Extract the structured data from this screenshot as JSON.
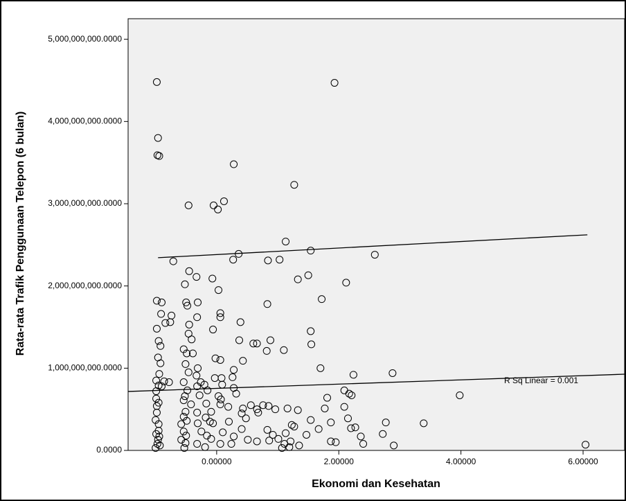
{
  "chart_data": {
    "type": "scatter",
    "x_label": "Ekonomi dan Kesehatan",
    "y_label": "Rata-rata Trafik Penggunaan Telepon (6 bulan)",
    "annotation": "R Sq Linear = 0.001",
    "xlim": [
      -1.45,
      6.68
    ],
    "ylim": [
      0,
      5250000000.0
    ],
    "xticks": [
      {
        "value": 0,
        "label": "0.00000"
      },
      {
        "value": 2,
        "label": "2.00000"
      },
      {
        "value": 4,
        "label": "4.00000"
      },
      {
        "value": 6,
        "label": "6.00000"
      }
    ],
    "yticks": [
      {
        "value": 0,
        "label": "0.0000"
      },
      {
        "value": 1000000000.0,
        "label": "1,000,000,000.0000"
      },
      {
        "value": 2000000000.0,
        "label": "2,000,000,000.0000"
      },
      {
        "value": 3000000000.0,
        "label": "3,000,000,000.0000"
      },
      {
        "value": 4000000000.0,
        "label": "4,000,000,000.0000"
      },
      {
        "value": 5000000000.0,
        "label": "5,000,000,000.0000"
      }
    ],
    "marker_color": "#000000",
    "background": "#f0f0f0",
    "x": [
      -0.98,
      1.93,
      -0.96,
      -0.97,
      -0.94,
      0.28,
      1.27,
      -0.46,
      -0.05,
      0.02,
      0.12,
      1.13,
      0.36,
      -0.71,
      0.27,
      0.84,
      1.03,
      1.54,
      2.59,
      -0.45,
      -0.33,
      -0.07,
      1.33,
      1.5,
      2.12,
      -0.52,
      0.03,
      -0.98,
      -0.9,
      -0.5,
      -0.31,
      -0.48,
      0.83,
      1.72,
      -0.91,
      -0.74,
      0.06,
      0.06,
      -0.32,
      -0.84,
      -0.76,
      -0.45,
      0.39,
      -0.98,
      -0.06,
      1.54,
      -0.46,
      -0.41,
      -0.95,
      0.37,
      0.88,
      0.6,
      0.66,
      -0.92,
      1.55,
      -0.54,
      0.82,
      1.1,
      -0.49,
      -0.39,
      -0.96,
      -0.02,
      0.06,
      0.43,
      -0.92,
      -0.51,
      -0.31,
      1.7,
      0.28,
      2.88,
      2.24,
      -0.94,
      -0.46,
      -0.33,
      -0.03,
      0.08,
      0.26,
      -0.99,
      -0.86,
      -0.78,
      -0.54,
      -0.26,
      -0.95,
      -0.9,
      -0.32,
      -0.2,
      0.09,
      0.28,
      -0.99,
      -0.48,
      -0.15,
      0.32,
      2.09,
      2.17,
      2.21,
      3.98,
      -0.99,
      -0.52,
      -0.28,
      0.03,
      0.07,
      1.81,
      -0.95,
      -0.98,
      -0.54,
      -0.42,
      -0.17,
      0.06,
      0.19,
      0.56,
      0.76,
      0.85,
      0.43,
      0.66,
      0.96,
      1.16,
      1.77,
      2.09,
      -0.98,
      -0.51,
      -0.32,
      -0.09,
      0.41,
      0.68,
      1.33,
      -0.54,
      -0.18,
      -1.0,
      -0.49,
      -0.11,
      0.2,
      0.48,
      1.54,
      2.15,
      -0.95,
      -0.58,
      -0.31,
      -0.06,
      1.23,
      1.87,
      2.2,
      2.27,
      2.77,
      3.39,
      0.41,
      0.83,
      1.27,
      1.67,
      -0.95,
      -0.99,
      -0.54,
      -0.25,
      0.1,
      1.13,
      2.72,
      -0.94,
      -0.5,
      -0.16,
      0.28,
      0.92,
      1.47,
      2.36,
      -0.96,
      -0.58,
      -0.09,
      0.51,
      0.66,
      1.01,
      1.21,
      1.87,
      1.95,
      2.4,
      -0.97,
      -0.93,
      -0.51,
      -0.32,
      0.06,
      0.24,
      0.86,
      1.11,
      1.35,
      2.9,
      6.04,
      -1.0,
      -0.53,
      -0.19,
      1.07,
      1.19
    ],
    "y": [
      4480000000.0,
      4470000000.0,
      3800000000.0,
      3590000000.0,
      3580000000.0,
      3480000000.0,
      3230000000.0,
      2980000000.0,
      2980000000.0,
      2930000000.0,
      3030000000.0,
      2540000000.0,
      2390000000.0,
      2300000000.0,
      2320000000.0,
      2310000000.0,
      2320000000.0,
      2430000000.0,
      2380000000.0,
      2180000000.0,
      2110000000.0,
      2090000000.0,
      2080000000.0,
      2130000000.0,
      2040000000.0,
      2020000000.0,
      1950000000.0,
      1820000000.0,
      1800000000.0,
      1800000000.0,
      1800000000.0,
      1760000000.0,
      1780000000.0,
      1840000000.0,
      1660000000.0,
      1640000000.0,
      1670000000.0,
      1620000000.0,
      1620000000.0,
      1550000000.0,
      1560000000.0,
      1530000000.0,
      1560000000.0,
      1480000000.0,
      1470000000.0,
      1450000000.0,
      1420000000.0,
      1350000000.0,
      1330000000.0,
      1340000000.0,
      1340000000.0,
      1300000000.0,
      1300000000.0,
      1270000000.0,
      1290000000.0,
      1230000000.0,
      1210000000.0,
      1220000000.0,
      1180000000.0,
      1180000000.0,
      1130000000.0,
      1120000000.0,
      1100000000.0,
      1090000000.0,
      1060000000.0,
      1050000000.0,
      1000000000.0,
      1000000000.0,
      980000000.0,
      940000000.0,
      920000000.0,
      930000000.0,
      950000000.0,
      910000000.0,
      880000000.0,
      880000000.0,
      890000000.0,
      850000000.0,
      840000000.0,
      830000000.0,
      830000000.0,
      830000000.0,
      790000000.0,
      780000000.0,
      780000000.0,
      800000000.0,
      800000000.0,
      760000000.0,
      720000000.0,
      730000000.0,
      730000000.0,
      690000000.0,
      730000000.0,
      690000000.0,
      670000000.0,
      670000000.0,
      630000000.0,
      660000000.0,
      670000000.0,
      660000000.0,
      620000000.0,
      640000000.0,
      580000000.0,
      540000000.0,
      610000000.0,
      560000000.0,
      570000000.0,
      560000000.0,
      530000000.0,
      550000000.0,
      550000000.0,
      540000000.0,
      510000000.0,
      500000000.0,
      500000000.0,
      510000000.0,
      510000000.0,
      530000000.0,
      460000000.0,
      470000000.0,
      460000000.0,
      470000000.0,
      450000000.0,
      460000000.0,
      490000000.0,
      410000000.0,
      400000000.0,
      370000000.0,
      360000000.0,
      350000000.0,
      350000000.0,
      390000000.0,
      370000000.0,
      390000000.0,
      320000000.0,
      320000000.0,
      330000000.0,
      330000000.0,
      310000000.0,
      340000000.0,
      270000000.0,
      280000000.0,
      340000000.0,
      330000000.0,
      260000000.0,
      250000000.0,
      290000000.0,
      260000000.0,
      240000000.0,
      200000000.0,
      230000000.0,
      230000000.0,
      220000000.0,
      210000000.0,
      200000000.0,
      170000000.0,
      180000000.0,
      180000000.0,
      170000000.0,
      190000000.0,
      190000000.0,
      170000000.0,
      130000000.0,
      130000000.0,
      140000000.0,
      130000000.0,
      110000000.0,
      140000000.0,
      110000000.0,
      110000000.0,
      100000000.0,
      80000000.0,
      80000000.0,
      60000000.0,
      90000000.0,
      80000000.0,
      80000000.0,
      80000000.0,
      120000000.0,
      80000000.0,
      60000000.0,
      60000000.0,
      70000000.0,
      30000000.0,
      30000000.0,
      40000000.0,
      30000000.0,
      40000000.0
    ],
    "fit_lines": [
      {
        "x": [
          -1.45,
          6.68
        ],
        "y": [
          717000000.0,
          927000000.0
        ]
      },
      {
        "x": [
          -0.96,
          6.07
        ],
        "y": [
          2344000000.0,
          2622000000.0
        ]
      }
    ]
  }
}
